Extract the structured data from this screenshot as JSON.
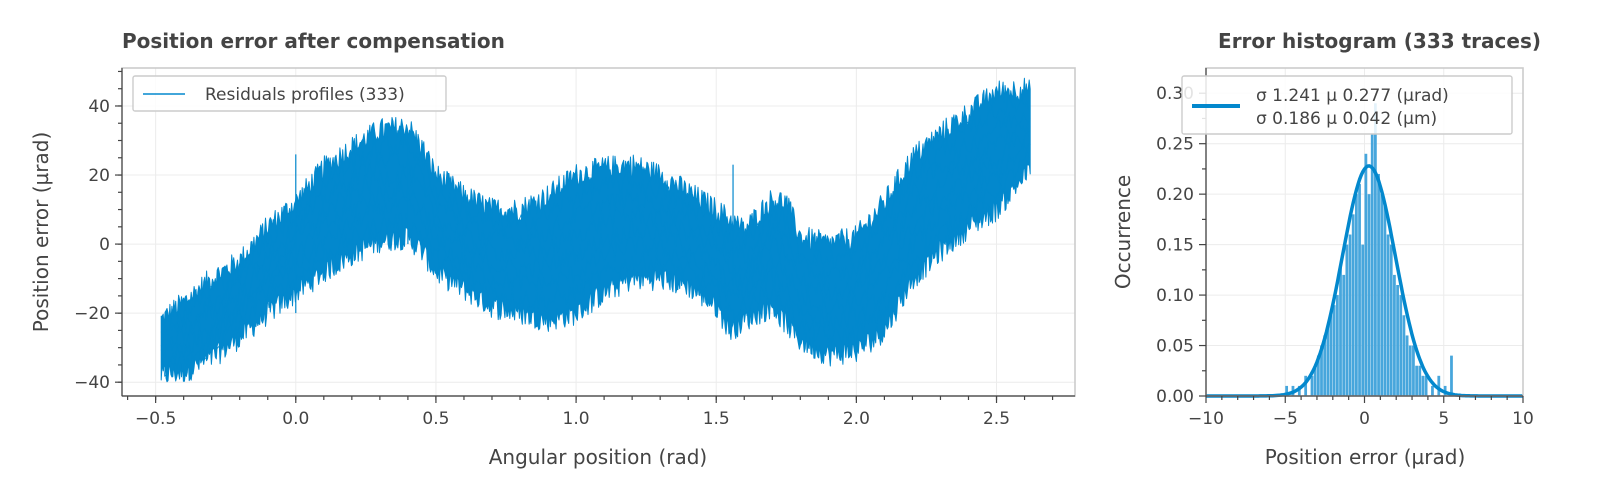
{
  "colors": {
    "series": "#0388cd",
    "hist": "#47a6dc",
    "text": "#444444"
  },
  "chart_data": [
    {
      "type": "line",
      "title": "Position error after compensation",
      "xlabel": "Angular position (rad)",
      "ylabel": "Position error (µrad)",
      "xlim": [
        -0.62,
        2.78
      ],
      "ylim": [
        -44,
        51
      ],
      "xticks": [
        -0.5,
        0.0,
        0.5,
        1.0,
        1.5,
        2.0,
        2.5
      ],
      "xtick_labels": [
        "−0.5",
        "0.0",
        "0.5",
        "1.0",
        "1.5",
        "2.0",
        "2.5"
      ],
      "yticks": [
        -40,
        -20,
        0,
        20,
        40
      ],
      "ytick_labels": [
        "−40",
        "−20",
        "0",
        "20",
        "40"
      ],
      "legend": "Residuals profiles (333)",
      "n_traces": 333,
      "x_range": [
        -0.48,
        2.62
      ],
      "upper_envelope": [
        [
          -0.48,
          -22
        ],
        [
          -0.4,
          -17
        ],
        [
          -0.3,
          -10
        ],
        [
          -0.2,
          -5
        ],
        [
          -0.1,
          5
        ],
        [
          0.0,
          12
        ],
        [
          0.1,
          22
        ],
        [
          0.2,
          28
        ],
        [
          0.3,
          33
        ],
        [
          0.4,
          34
        ],
        [
          0.45,
          28
        ],
        [
          0.5,
          20
        ],
        [
          0.6,
          14
        ],
        [
          0.7,
          10
        ],
        [
          0.8,
          10
        ],
        [
          0.9,
          14
        ],
        [
          1.0,
          20
        ],
        [
          1.1,
          22
        ],
        [
          1.2,
          23
        ],
        [
          1.3,
          20
        ],
        [
          1.4,
          15
        ],
        [
          1.5,
          10
        ],
        [
          1.6,
          4
        ],
        [
          1.7,
          13
        ],
        [
          1.75,
          12
        ],
        [
          1.8,
          2
        ],
        [
          1.9,
          0
        ],
        [
          2.0,
          2
        ],
        [
          2.1,
          12
        ],
        [
          2.2,
          25
        ],
        [
          2.3,
          32
        ],
        [
          2.4,
          38
        ],
        [
          2.5,
          44
        ],
        [
          2.6,
          45
        ],
        [
          2.62,
          44
        ]
      ],
      "lower_envelope": [
        [
          -0.48,
          -38
        ],
        [
          -0.4,
          -37
        ],
        [
          -0.3,
          -33
        ],
        [
          -0.2,
          -27
        ],
        [
          -0.1,
          -20
        ],
        [
          0.0,
          -14
        ],
        [
          0.1,
          -8
        ],
        [
          0.2,
          -3
        ],
        [
          0.3,
          1
        ],
        [
          0.4,
          2
        ],
        [
          0.45,
          -2
        ],
        [
          0.5,
          -8
        ],
        [
          0.6,
          -13
        ],
        [
          0.7,
          -18
        ],
        [
          0.8,
          -20
        ],
        [
          0.9,
          -22
        ],
        [
          1.0,
          -20
        ],
        [
          1.1,
          -14
        ],
        [
          1.2,
          -10
        ],
        [
          1.3,
          -10
        ],
        [
          1.4,
          -12
        ],
        [
          1.5,
          -18
        ],
        [
          1.55,
          -25
        ],
        [
          1.6,
          -22
        ],
        [
          1.7,
          -18
        ],
        [
          1.8,
          -28
        ],
        [
          1.9,
          -32
        ],
        [
          2.0,
          -31
        ],
        [
          2.1,
          -25
        ],
        [
          2.2,
          -10
        ],
        [
          2.3,
          -2
        ],
        [
          2.4,
          5
        ],
        [
          2.5,
          10
        ],
        [
          2.6,
          20
        ],
        [
          2.62,
          22
        ]
      ],
      "spikes": [
        {
          "x": 0.0,
          "y_low": -20,
          "y_high": 26
        },
        {
          "x": 1.56,
          "y_low": -12,
          "y_high": 23
        },
        {
          "x": 0.4,
          "y_low": 0,
          "y_high": 30
        }
      ]
    },
    {
      "type": "bar",
      "title": "Error histogram (333 traces)",
      "xlabel": "Position error (µrad)",
      "ylabel": "Occurrence",
      "xlim": [
        -10,
        10
      ],
      "ylim": [
        0,
        0.325
      ],
      "xticks": [
        -10,
        -5,
        0,
        5,
        10
      ],
      "xtick_labels": [
        "−10",
        "−5",
        "0",
        "5",
        "10"
      ],
      "yticks": [
        0.0,
        0.05,
        0.1,
        0.15,
        0.2,
        0.25,
        0.3
      ],
      "ytick_labels": [
        "0.00",
        "0.05",
        "0.10",
        "0.15",
        "0.20",
        "0.25",
        "0.30"
      ],
      "bin_width": 0.2,
      "bins_x": [
        -5.0,
        -4.6,
        -4.2,
        -3.8,
        -3.4,
        -3.2,
        -3.0,
        -2.8,
        -2.6,
        -2.4,
        -2.2,
        -2.0,
        -1.8,
        -1.6,
        -1.4,
        -1.2,
        -1.0,
        -0.8,
        -0.6,
        -0.4,
        -0.2,
        0.0,
        0.2,
        0.4,
        0.6,
        0.8,
        1.0,
        1.2,
        1.4,
        1.6,
        1.8,
        2.0,
        2.2,
        2.4,
        2.6,
        2.8,
        3.0,
        3.2,
        3.4,
        3.6,
        3.8,
        4.2,
        4.6,
        5.0,
        5.4
      ],
      "bins_y": [
        0.01,
        0.01,
        0.01,
        0.02,
        0.02,
        0.03,
        0.04,
        0.05,
        0.06,
        0.07,
        0.08,
        0.09,
        0.1,
        0.13,
        0.12,
        0.15,
        0.16,
        0.18,
        0.2,
        0.21,
        0.15,
        0.24,
        0.2,
        0.26,
        0.29,
        0.22,
        0.2,
        0.19,
        0.16,
        0.15,
        0.12,
        0.11,
        0.1,
        0.08,
        0.06,
        0.05,
        0.05,
        0.03,
        0.03,
        0.02,
        0.02,
        0.01,
        0.02,
        0.01,
        0.04
      ],
      "fit": {
        "type": "gaussian",
        "sigma": 1.241,
        "mu": 0.277,
        "peak": 0.228
      },
      "legend_lines": [
        "σ 1.241   μ 0.277  (µrad)",
        "σ 0.186   μ 0.042  (µm)"
      ]
    }
  ]
}
